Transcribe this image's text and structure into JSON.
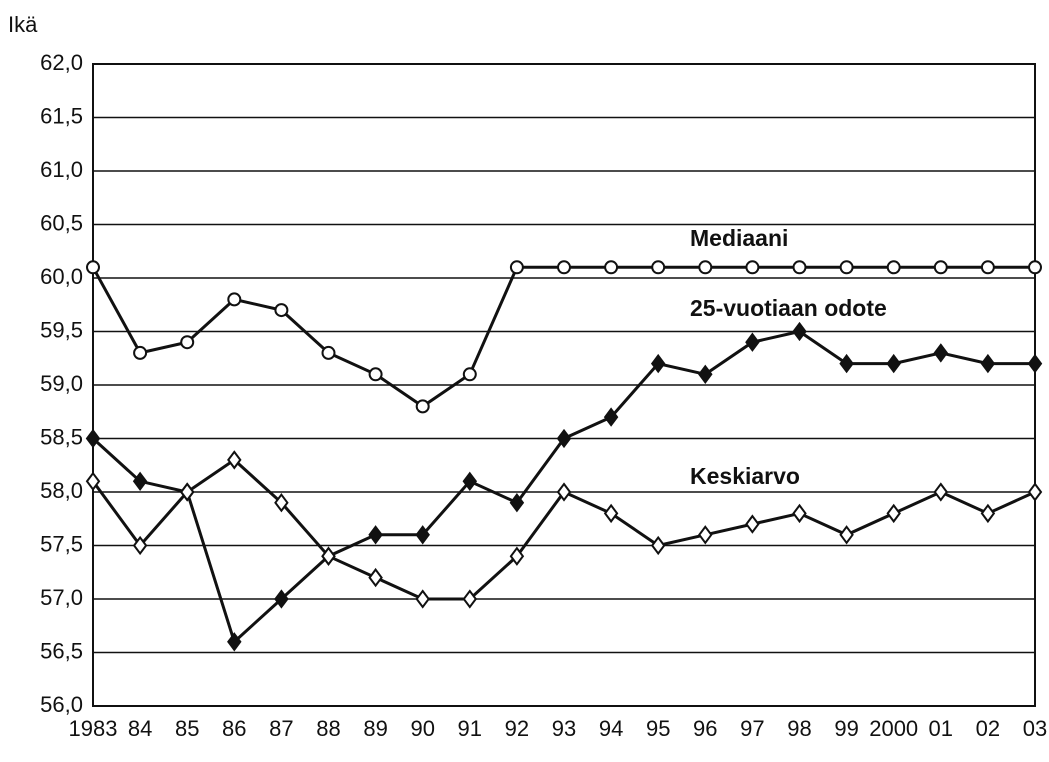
{
  "chart_data": {
    "type": "line",
    "y_label": "Ikä",
    "categories": [
      "1983",
      "84",
      "85",
      "86",
      "87",
      "88",
      "89",
      "90",
      "91",
      "92",
      "93",
      "94",
      "95",
      "96",
      "97",
      "98",
      "99",
      "2000",
      "01",
      "02",
      "03"
    ],
    "series": [
      {
        "name": "Mediaani",
        "color": "#111111",
        "marker": "circle-open",
        "values": [
          60.1,
          59.3,
          59.4,
          59.8,
          59.7,
          59.3,
          59.1,
          58.8,
          59.1,
          60.1,
          60.1,
          60.1,
          60.1,
          60.1,
          60.1,
          60.1,
          60.1,
          60.1,
          60.1,
          60.1,
          60.1
        ]
      },
      {
        "name": "25-vuotiaan odote",
        "color": "#111111",
        "marker": "diamond-filled",
        "values": [
          58.5,
          58.1,
          58.0,
          56.6,
          57.0,
          57.4,
          57.6,
          57.6,
          58.1,
          57.9,
          58.5,
          58.7,
          59.2,
          59.1,
          59.4,
          59.5,
          59.2,
          59.2,
          59.3,
          59.2,
          59.2
        ]
      },
      {
        "name": "Keskiarvo",
        "color": "#111111",
        "marker": "diamond-open",
        "values": [
          58.1,
          57.5,
          58.0,
          58.3,
          57.9,
          57.4,
          57.2,
          57.0,
          57.0,
          57.4,
          58.0,
          57.8,
          57.5,
          57.6,
          57.7,
          57.8,
          57.6,
          57.8,
          58.0,
          57.8,
          58.0
        ]
      }
    ],
    "ylim": [
      56.0,
      62.0
    ],
    "yticks": [
      {
        "value": 56.0,
        "label": "56,0"
      },
      {
        "value": 56.5,
        "label": "56,5"
      },
      {
        "value": 57.0,
        "label": "57,0"
      },
      {
        "value": 57.5,
        "label": "57,5"
      },
      {
        "value": 58.0,
        "label": "58,0"
      },
      {
        "value": 58.5,
        "label": "58,5"
      },
      {
        "value": 59.0,
        "label": "59,0"
      },
      {
        "value": 59.5,
        "label": "59,5"
      },
      {
        "value": 60.0,
        "label": "60,0"
      },
      {
        "value": 60.5,
        "label": "60,5"
      },
      {
        "value": 61.0,
        "label": "61,0"
      },
      {
        "value": 61.5,
        "label": "61,5"
      },
      {
        "value": 62.0,
        "label": "62,0"
      }
    ],
    "grid": true
  }
}
